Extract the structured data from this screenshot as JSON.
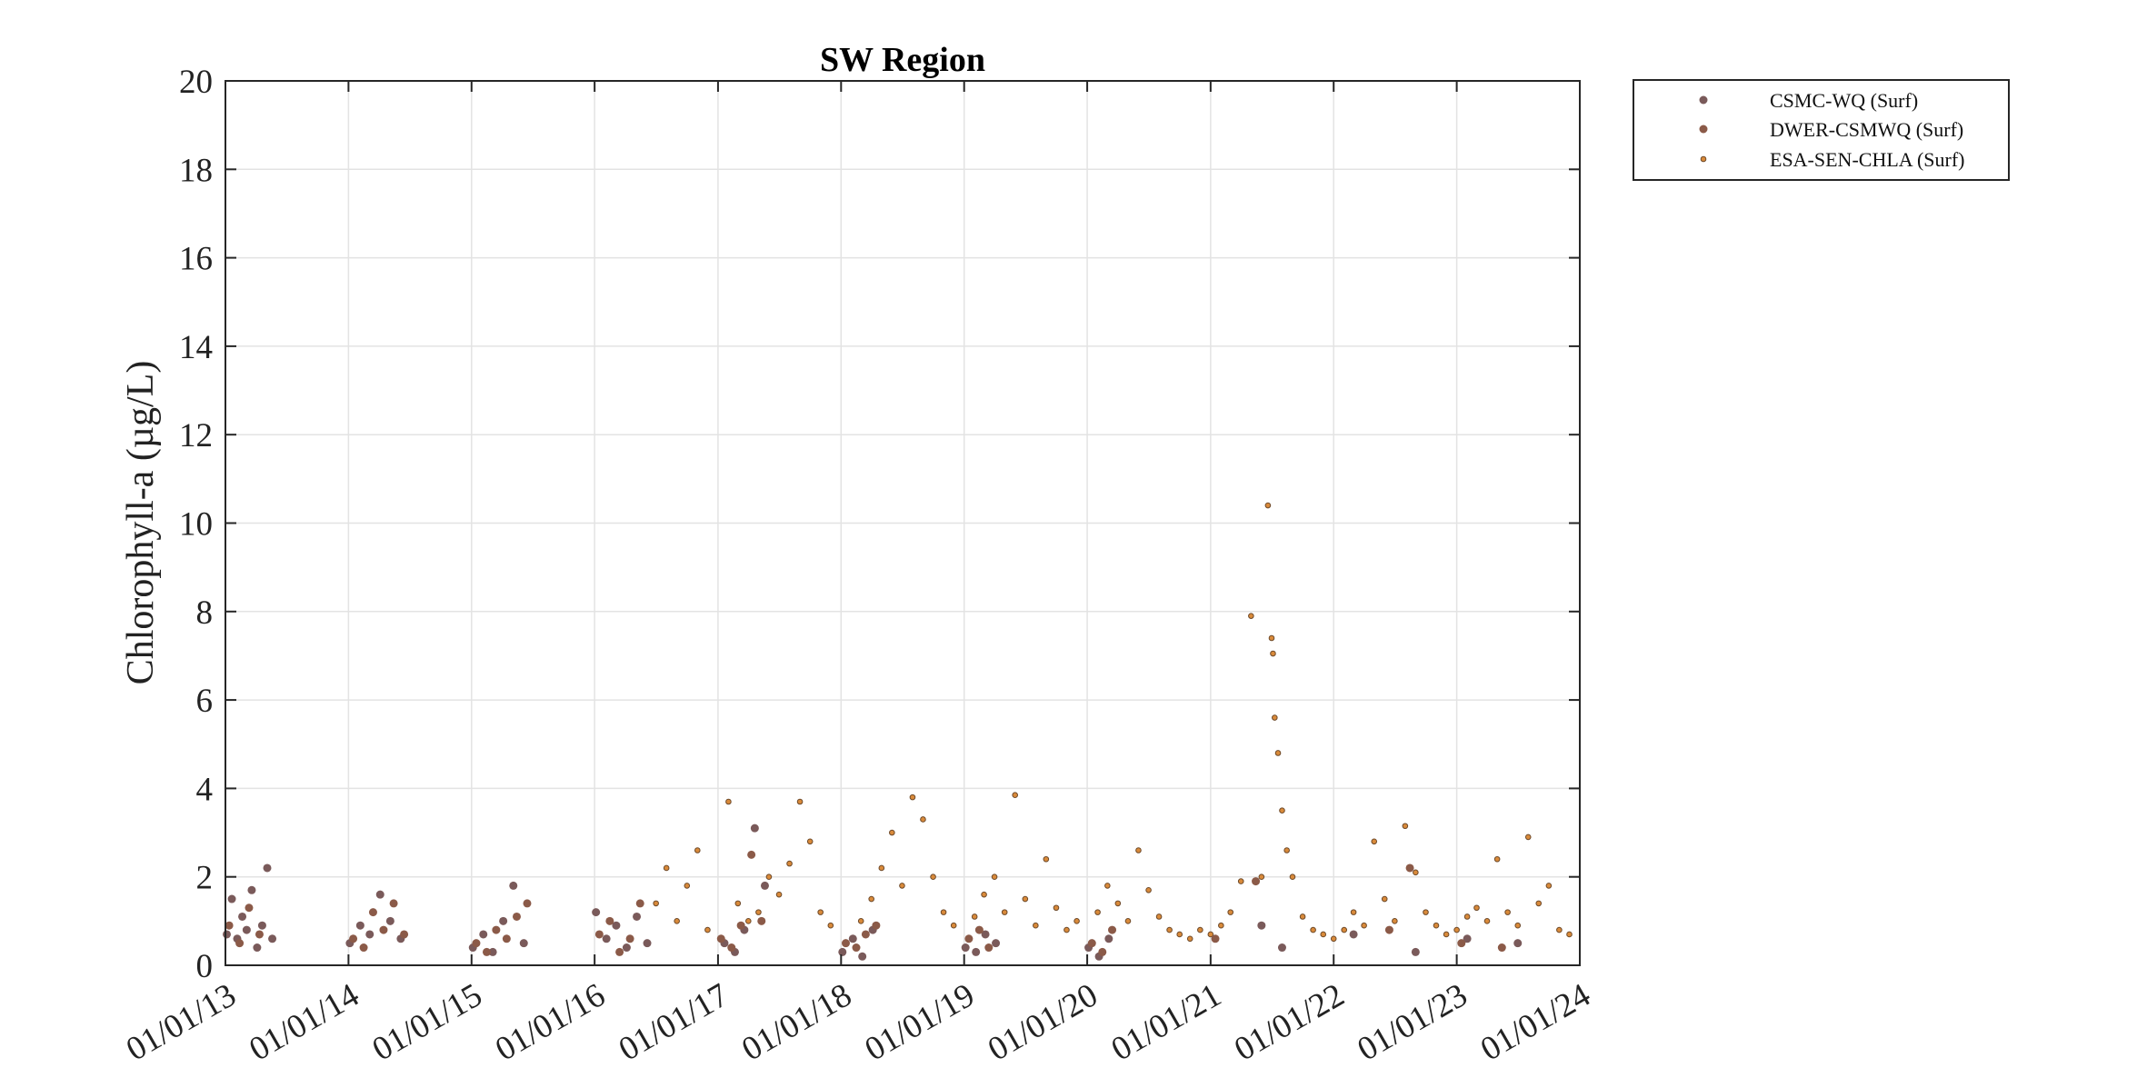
{
  "chart_data": {
    "type": "scatter",
    "title": "SW Region",
    "xlabel": "",
    "ylabel": "Chlorophyll-a (µg/L)",
    "x_axis": {
      "type": "date",
      "range": [
        "2013-01-01",
        "2024-01-01"
      ],
      "tick_labels": [
        "01/01/13",
        "01/01/14",
        "01/01/15",
        "01/01/16",
        "01/01/17",
        "01/01/18",
        "01/01/19",
        "01/01/20",
        "01/01/21",
        "01/01/22",
        "01/01/23",
        "01/01/24"
      ]
    },
    "y_axis": {
      "range": [
        0,
        20
      ],
      "ticks": [
        0,
        2,
        4,
        6,
        8,
        10,
        12,
        14,
        16,
        18,
        20
      ]
    },
    "grid": true,
    "legend_position": "outside-top-right",
    "series": [
      {
        "name": "CSMC-WQ (Surf)",
        "color": "#7a5a5a",
        "points": [
          [
            "2013-01-05",
            0.7
          ],
          [
            "2013-01-20",
            1.5
          ],
          [
            "2013-02-05",
            0.6
          ],
          [
            "2013-02-20",
            1.1
          ],
          [
            "2013-03-05",
            0.8
          ],
          [
            "2013-03-20",
            1.7
          ],
          [
            "2013-04-05",
            0.4
          ],
          [
            "2013-04-20",
            0.9
          ],
          [
            "2013-05-05",
            2.2
          ],
          [
            "2013-05-20",
            0.6
          ],
          [
            "2014-01-05",
            0.5
          ],
          [
            "2014-02-05",
            0.9
          ],
          [
            "2014-03-05",
            0.7
          ],
          [
            "2014-04-05",
            1.6
          ],
          [
            "2014-05-05",
            1.0
          ],
          [
            "2014-06-05",
            0.6
          ],
          [
            "2015-01-05",
            0.4
          ],
          [
            "2015-02-05",
            0.7
          ],
          [
            "2015-03-05",
            0.3
          ],
          [
            "2015-04-05",
            1.0
          ],
          [
            "2015-05-05",
            1.8
          ],
          [
            "2015-06-05",
            0.5
          ],
          [
            "2016-01-05",
            1.2
          ],
          [
            "2016-02-05",
            0.6
          ],
          [
            "2016-03-05",
            0.9
          ],
          [
            "2016-04-05",
            0.4
          ],
          [
            "2016-05-05",
            1.1
          ],
          [
            "2016-06-05",
            0.5
          ],
          [
            "2017-01-20",
            0.5
          ],
          [
            "2017-02-20",
            0.3
          ],
          [
            "2017-03-20",
            0.8
          ],
          [
            "2017-04-20",
            3.1
          ],
          [
            "2017-05-20",
            1.8
          ],
          [
            "2018-01-05",
            0.3
          ],
          [
            "2018-02-05",
            0.6
          ],
          [
            "2018-03-05",
            0.2
          ],
          [
            "2018-04-05",
            0.8
          ],
          [
            "2019-01-05",
            0.4
          ],
          [
            "2019-02-05",
            0.3
          ],
          [
            "2019-03-05",
            0.7
          ],
          [
            "2019-04-05",
            0.5
          ],
          [
            "2020-01-05",
            0.4
          ],
          [
            "2020-02-05",
            0.2
          ],
          [
            "2020-03-05",
            0.6
          ],
          [
            "2021-06-01",
            0.9
          ],
          [
            "2021-08-01",
            0.4
          ],
          [
            "2022-03-01",
            0.7
          ],
          [
            "2022-09-01",
            0.3
          ],
          [
            "2023-02-01",
            0.6
          ],
          [
            "2023-07-01",
            0.5
          ]
        ]
      },
      {
        "name": "DWER-CSMWQ (Surf)",
        "color": "#8b5a48",
        "points": [
          [
            "2013-01-12",
            0.9
          ],
          [
            "2013-02-12",
            0.5
          ],
          [
            "2013-03-12",
            1.3
          ],
          [
            "2013-04-12",
            0.7
          ],
          [
            "2014-01-15",
            0.6
          ],
          [
            "2014-02-15",
            0.4
          ],
          [
            "2014-03-15",
            1.2
          ],
          [
            "2014-04-15",
            0.8
          ],
          [
            "2014-05-15",
            1.4
          ],
          [
            "2014-06-15",
            0.7
          ],
          [
            "2015-01-15",
            0.5
          ],
          [
            "2015-02-15",
            0.3
          ],
          [
            "2015-03-15",
            0.8
          ],
          [
            "2015-04-15",
            0.6
          ],
          [
            "2015-05-15",
            1.1
          ],
          [
            "2015-06-15",
            1.4
          ],
          [
            "2016-01-15",
            0.7
          ],
          [
            "2016-02-15",
            1.0
          ],
          [
            "2016-03-15",
            0.3
          ],
          [
            "2016-04-15",
            0.6
          ],
          [
            "2016-05-15",
            1.4
          ],
          [
            "2017-01-10",
            0.6
          ],
          [
            "2017-02-10",
            0.4
          ],
          [
            "2017-03-10",
            0.9
          ],
          [
            "2017-04-10",
            2.5
          ],
          [
            "2017-05-10",
            1.0
          ],
          [
            "2018-01-15",
            0.5
          ],
          [
            "2018-02-15",
            0.4
          ],
          [
            "2018-03-15",
            0.7
          ],
          [
            "2018-04-15",
            0.9
          ],
          [
            "2019-01-15",
            0.6
          ],
          [
            "2019-02-15",
            0.8
          ],
          [
            "2019-03-15",
            0.4
          ],
          [
            "2020-01-15",
            0.5
          ],
          [
            "2020-02-15",
            0.3
          ],
          [
            "2020-03-15",
            0.8
          ],
          [
            "2021-01-15",
            0.6
          ],
          [
            "2021-05-15",
            1.9
          ],
          [
            "2022-06-15",
            0.8
          ],
          [
            "2022-08-15",
            2.2
          ],
          [
            "2023-01-15",
            0.5
          ],
          [
            "2023-05-15",
            0.4
          ]
        ]
      },
      {
        "name": "ESA-SEN-CHLA (Surf)",
        "color": "#d98a3a",
        "stroke": "#6e4a2a",
        "points": [
          [
            "2016-07-01",
            1.4
          ],
          [
            "2016-08-01",
            2.2
          ],
          [
            "2016-09-01",
            1.0
          ],
          [
            "2016-10-01",
            1.8
          ],
          [
            "2016-11-01",
            2.6
          ],
          [
            "2016-12-01",
            0.8
          ],
          [
            "2017-02-01",
            3.7
          ],
          [
            "2017-03-01",
            1.4
          ],
          [
            "2017-04-01",
            1.0
          ],
          [
            "2017-05-01",
            1.2
          ],
          [
            "2017-06-01",
            2.0
          ],
          [
            "2017-07-01",
            1.6
          ],
          [
            "2017-08-01",
            2.3
          ],
          [
            "2017-09-01",
            3.7
          ],
          [
            "2017-10-01",
            2.8
          ],
          [
            "2017-11-01",
            1.2
          ],
          [
            "2017-12-01",
            0.9
          ],
          [
            "2018-03-01",
            1.0
          ],
          [
            "2018-04-01",
            1.5
          ],
          [
            "2018-05-01",
            2.2
          ],
          [
            "2018-06-01",
            3.0
          ],
          [
            "2018-07-01",
            1.8
          ],
          [
            "2018-08-01",
            3.8
          ],
          [
            "2018-09-01",
            3.3
          ],
          [
            "2018-10-01",
            2.0
          ],
          [
            "2018-11-01",
            1.2
          ],
          [
            "2018-12-01",
            0.9
          ],
          [
            "2019-02-01",
            1.1
          ],
          [
            "2019-03-01",
            1.6
          ],
          [
            "2019-04-01",
            2.0
          ],
          [
            "2019-05-01",
            1.2
          ],
          [
            "2019-06-01",
            3.85
          ],
          [
            "2019-07-01",
            1.5
          ],
          [
            "2019-08-01",
            0.9
          ],
          [
            "2019-09-01",
            2.4
          ],
          [
            "2019-10-01",
            1.3
          ],
          [
            "2019-11-01",
            0.8
          ],
          [
            "2019-12-01",
            1.0
          ],
          [
            "2020-02-01",
            1.2
          ],
          [
            "2020-03-01",
            1.8
          ],
          [
            "2020-04-01",
            1.4
          ],
          [
            "2020-05-01",
            1.0
          ],
          [
            "2020-06-01",
            2.6
          ],
          [
            "2020-07-01",
            1.7
          ],
          [
            "2020-08-01",
            1.1
          ],
          [
            "2020-09-01",
            0.8
          ],
          [
            "2020-10-01",
            0.7
          ],
          [
            "2020-11-01",
            0.6
          ],
          [
            "2020-12-01",
            0.8
          ],
          [
            "2021-01-01",
            0.7
          ],
          [
            "2021-02-01",
            0.9
          ],
          [
            "2021-03-01",
            1.2
          ],
          [
            "2021-04-01",
            1.9
          ],
          [
            "2021-05-01",
            7.9
          ],
          [
            "2021-06-01",
            2.0
          ],
          [
            "2021-06-20",
            10.4
          ],
          [
            "2021-07-01",
            7.4
          ],
          [
            "2021-07-05",
            7.05
          ],
          [
            "2021-07-10",
            5.6
          ],
          [
            "2021-07-20",
            4.8
          ],
          [
            "2021-08-01",
            3.5
          ],
          [
            "2021-08-15",
            2.6
          ],
          [
            "2021-09-01",
            2.0
          ],
          [
            "2021-10-01",
            1.1
          ],
          [
            "2021-11-01",
            0.8
          ],
          [
            "2021-12-01",
            0.7
          ],
          [
            "2022-01-01",
            0.6
          ],
          [
            "2022-02-01",
            0.8
          ],
          [
            "2022-03-01",
            1.2
          ],
          [
            "2022-04-01",
            0.9
          ],
          [
            "2022-05-01",
            2.8
          ],
          [
            "2022-06-01",
            1.5
          ],
          [
            "2022-07-01",
            1.0
          ],
          [
            "2022-08-01",
            3.15
          ],
          [
            "2022-09-01",
            2.1
          ],
          [
            "2022-10-01",
            1.2
          ],
          [
            "2022-11-01",
            0.9
          ],
          [
            "2022-12-01",
            0.7
          ],
          [
            "2023-01-01",
            0.8
          ],
          [
            "2023-02-01",
            1.1
          ],
          [
            "2023-03-01",
            1.3
          ],
          [
            "2023-04-01",
            1.0
          ],
          [
            "2023-05-01",
            2.4
          ],
          [
            "2023-06-01",
            1.2
          ],
          [
            "2023-07-01",
            0.9
          ],
          [
            "2023-08-01",
            2.9
          ],
          [
            "2023-09-01",
            1.4
          ],
          [
            "2023-10-01",
            1.8
          ],
          [
            "2023-11-01",
            0.8
          ],
          [
            "2023-12-01",
            0.7
          ]
        ]
      }
    ]
  }
}
